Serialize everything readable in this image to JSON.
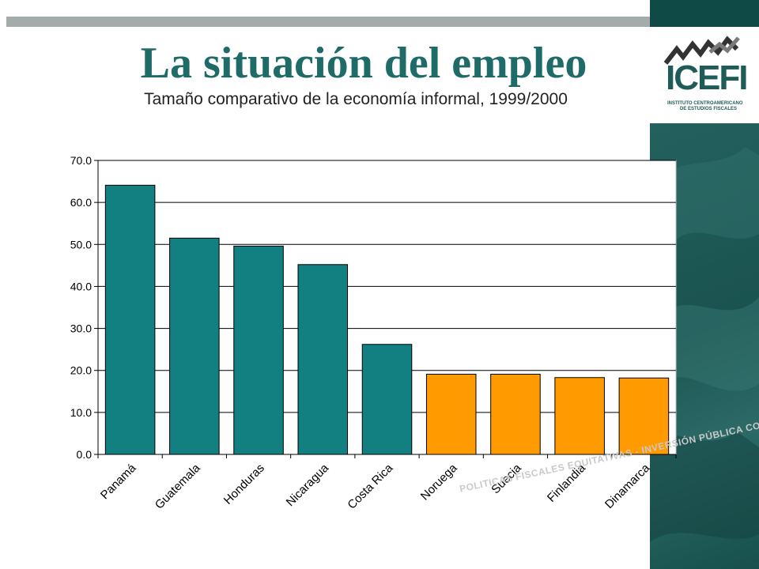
{
  "slide": {
    "title": "La situación del empleo",
    "subtitle": "Tamaño comparativo de la economía informal, 1999/2000",
    "watermark": "POLITICAS FISCALES EQUITATIVAS - INVERSIÓN PÚBLICA COOPARTICIPAC"
  },
  "logo": {
    "text": "ICEFI",
    "sub_line1": "INSTITUTO CENTROAMERICANO",
    "sub_line2": "DE ESTUDIOS FISCALES"
  },
  "colors": {
    "central_america": "#128080",
    "nordic": "#ff9a00",
    "title": "#1f6b68",
    "panel": "#1d5a57"
  },
  "chart_data": {
    "type": "bar",
    "title": "",
    "xlabel": "",
    "ylabel": "",
    "ylim": [
      0,
      70
    ],
    "yticks": [
      "0.0",
      "10.0",
      "20.0",
      "30.0",
      "40.0",
      "50.0",
      "60.0",
      "70.0"
    ],
    "grid": true,
    "legend": "none",
    "categories": [
      "Panamá",
      "Guatemala",
      "Honduras",
      "Nicaragua",
      "Costa Rica",
      "Noruega",
      "Suecia",
      "Finlandia",
      "Dinamarca"
    ],
    "values": [
      64.1,
      51.5,
      49.6,
      45.2,
      26.2,
      19.1,
      19.1,
      18.3,
      18.2
    ],
    "bar_colors": [
      "#128080",
      "#128080",
      "#128080",
      "#128080",
      "#128080",
      "#ff9a00",
      "#ff9a00",
      "#ff9a00",
      "#ff9a00"
    ]
  }
}
